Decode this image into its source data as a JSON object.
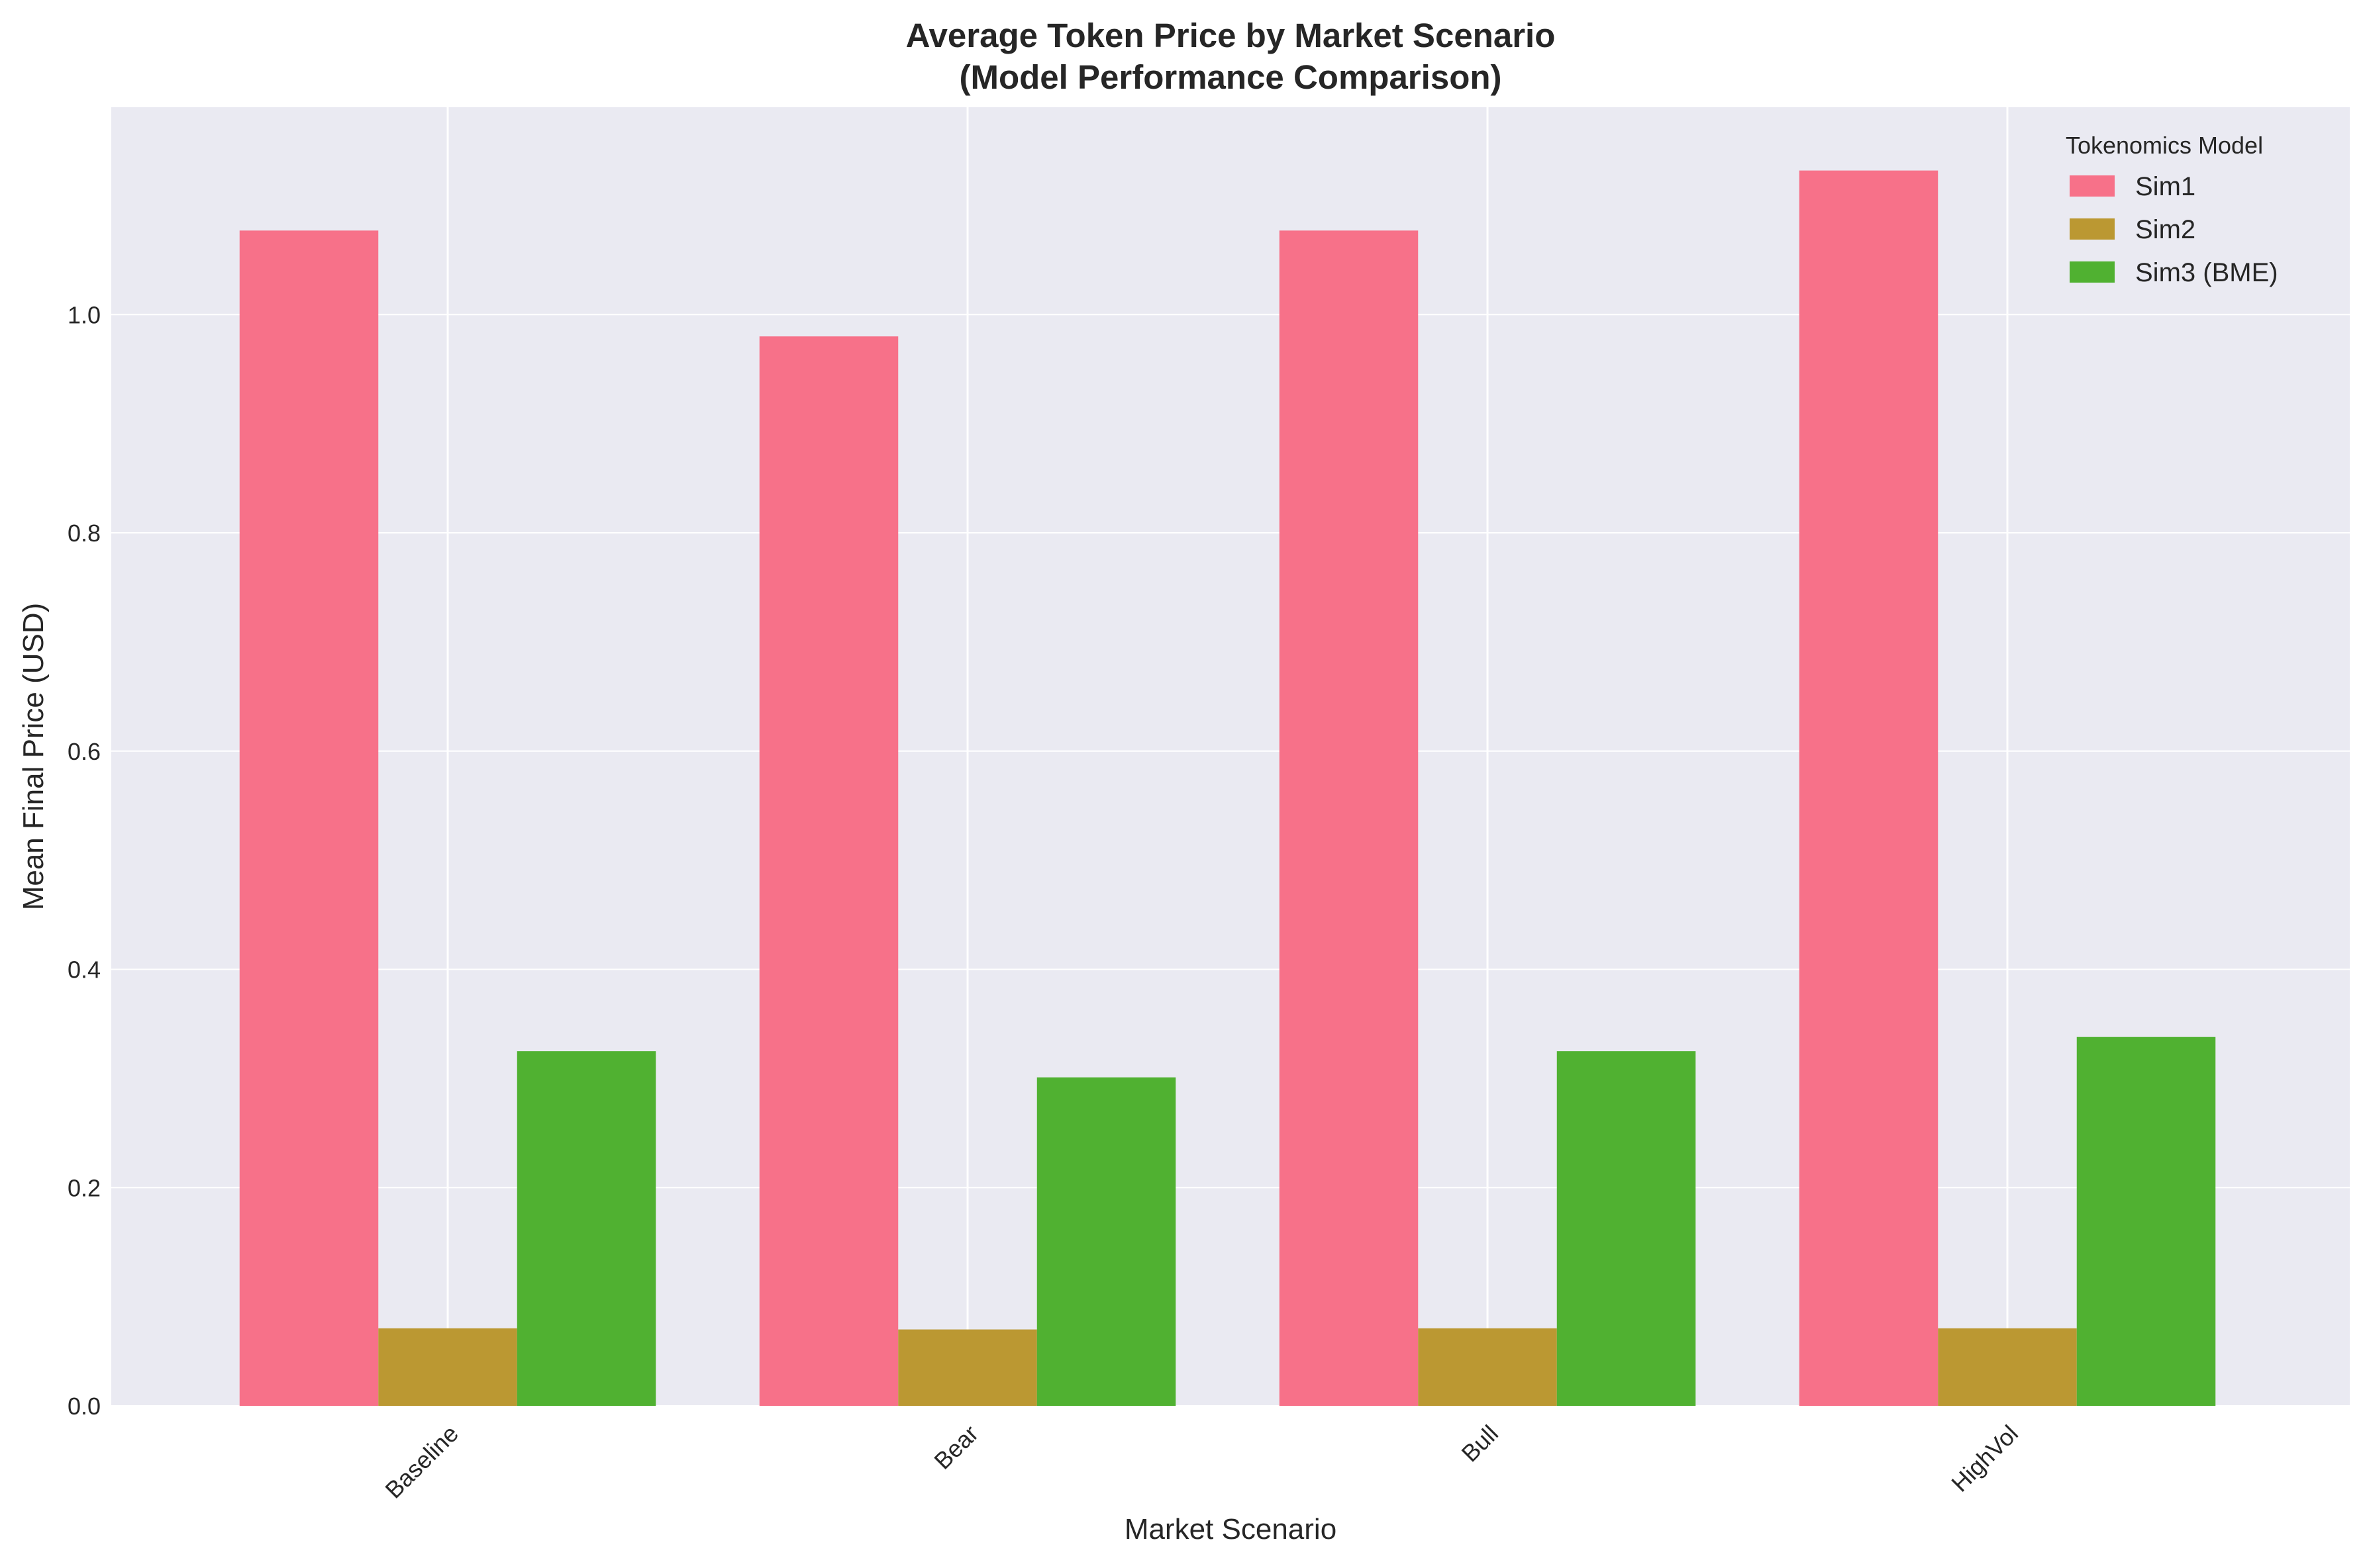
{
  "colors": {
    "background": "#eaeaf2",
    "grid": "#ffffff",
    "text": "#262626"
  },
  "chart_data": {
    "type": "bar",
    "title": "Average Token Price by Market Scenario",
    "subtitle": "(Model Performance Comparison)",
    "xlabel": "Market Scenario",
    "ylabel": "Mean Final Price (USD)",
    "categories": [
      "Baseline",
      "Bear",
      "Bull",
      "HighVol"
    ],
    "ylim": [
      0,
      1.19
    ],
    "yticks": [
      "0.0",
      "0.2",
      "0.4",
      "0.6",
      "0.8",
      "1.0"
    ],
    "ytick_values": [
      0,
      0.2,
      0.4,
      0.6,
      0.8,
      1.0
    ],
    "grid": true,
    "legend": {
      "title": "Tokenomics Model",
      "placement": "top-right"
    },
    "series": [
      {
        "name": "Sim1",
        "color": "#f77189",
        "values": [
          1.077,
          0.98,
          1.077,
          1.132
        ]
      },
      {
        "name": "Sim2",
        "color": "#bb9832",
        "values": [
          0.071,
          0.07,
          0.071,
          0.071
        ]
      },
      {
        "name": "Sim3 (BME)",
        "color": "#50b131",
        "values": [
          0.325,
          0.301,
          0.325,
          0.338
        ]
      }
    ]
  }
}
